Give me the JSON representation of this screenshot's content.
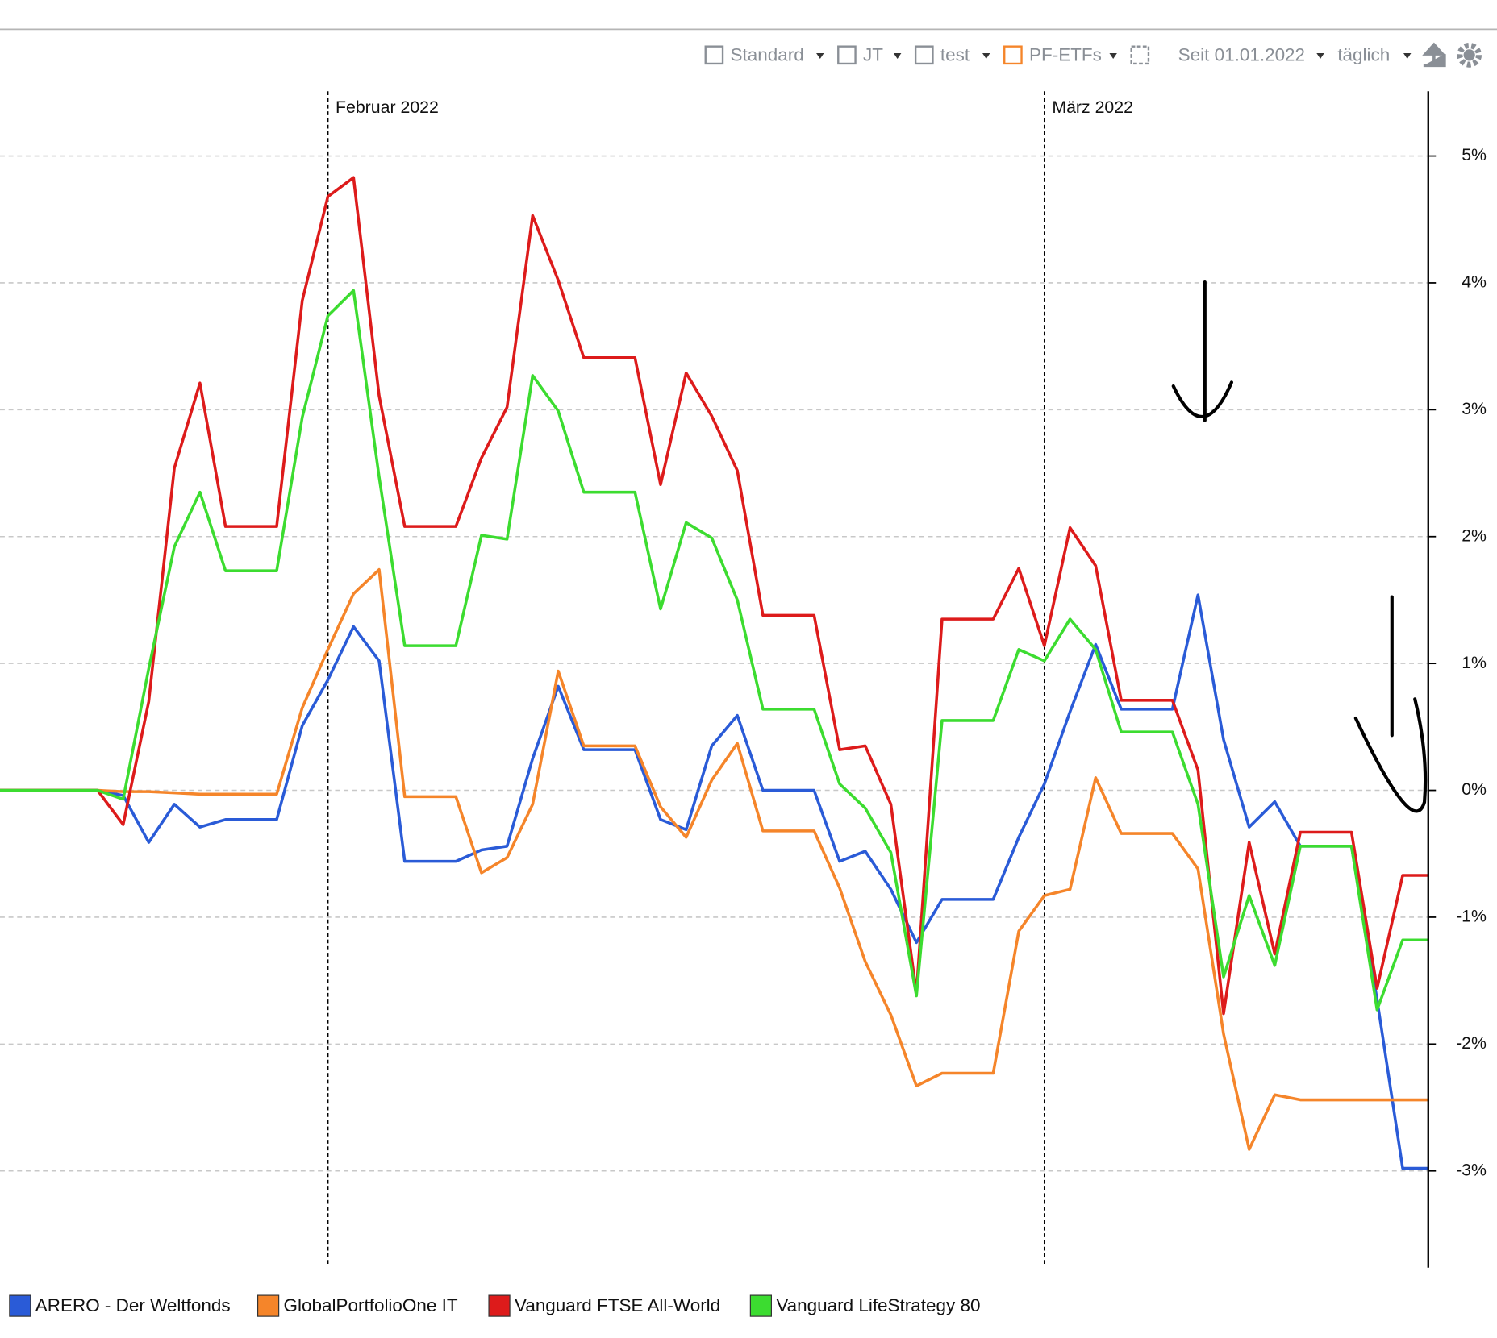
{
  "toolbar": {
    "views": [
      "Standard",
      "JT",
      "test",
      "PF-ETFs"
    ],
    "period": "Seit 01.01.2022",
    "interval": "täglich"
  },
  "chart_data": {
    "type": "line",
    "x": [
      0,
      1,
      2,
      3,
      4,
      5,
      6,
      7,
      8,
      9,
      10,
      11,
      12,
      13,
      14,
      15,
      16,
      17,
      18,
      19,
      20,
      21,
      22,
      23,
      24,
      25,
      26,
      27,
      28,
      29,
      30,
      31,
      32,
      33,
      34,
      35,
      36,
      37,
      38,
      39,
      40,
      41,
      42,
      43,
      44,
      45,
      46,
      47,
      48,
      49,
      50,
      51,
      52,
      53,
      54,
      55,
      56
    ],
    "xlim": [
      0,
      56
    ],
    "xticks": [
      {
        "value": 13,
        "label": "Februar 2022"
      },
      {
        "value": 41,
        "label": "März 2022"
      }
    ],
    "ylim": [
      -3.74,
      5.51
    ],
    "yticks": [
      {
        "value": -3,
        "label": "-3%"
      },
      {
        "value": -2,
        "label": "-2%"
      },
      {
        "value": -1,
        "label": "-1%"
      },
      {
        "value": 0,
        "label": "0%"
      },
      {
        "value": 1,
        "label": "1%"
      },
      {
        "value": 2,
        "label": "2%"
      },
      {
        "value": 3,
        "label": "3%"
      },
      {
        "value": 4,
        "label": "4%"
      },
      {
        "value": 5,
        "label": "5%"
      }
    ],
    "grid": true,
    "series": [
      {
        "name": "ARERO - Der Weltfonds",
        "color": "#2a5bd7",
        "values": [
          0,
          0,
          0,
          0,
          0,
          -0.04,
          -0.41,
          -0.11,
          -0.29,
          -0.23,
          -0.23,
          -0.23,
          0.51,
          0.87,
          1.29,
          1.02,
          -0.56,
          -0.56,
          -0.56,
          -0.47,
          -0.44,
          0.25,
          0.82,
          0.32,
          0.32,
          0.32,
          -0.23,
          -0.31,
          0.35,
          0.59,
          0,
          0,
          0,
          -0.56,
          -0.48,
          -0.78,
          -1.2,
          -0.86,
          -0.86,
          -0.86,
          -0.37,
          0.05,
          0.62,
          1.15,
          0.64,
          0.64,
          0.64,
          1.54,
          0.4,
          -0.29,
          -0.09,
          -0.44,
          -0.44,
          -0.44,
          -1.65,
          -2.98,
          -2.98
        ]
      },
      {
        "name": "GlobalPortfolioOne IT",
        "color": "#f5852a",
        "values": [
          0,
          0,
          0,
          0,
          0,
          -0.01,
          -0.01,
          -0.02,
          -0.03,
          -0.03,
          -0.03,
          -0.03,
          0.65,
          1.11,
          1.55,
          1.74,
          -0.05,
          -0.05,
          -0.05,
          -0.65,
          -0.53,
          -0.11,
          0.94,
          0.35,
          0.35,
          0.35,
          -0.13,
          -0.37,
          0.08,
          0.37,
          -0.32,
          -0.32,
          -0.32,
          -0.77,
          -1.35,
          -1.77,
          -2.33,
          -2.23,
          -2.23,
          -2.23,
          -1.11,
          -0.83,
          -0.78,
          0.1,
          -0.34,
          -0.34,
          -0.34,
          -0.62,
          -1.92,
          -2.83,
          -2.4,
          -2.44,
          -2.44,
          -2.44,
          -2.44,
          -2.44,
          -2.44
        ]
      },
      {
        "name": "Vanguard FTSE All-World",
        "color": "#dd1b1b",
        "values": [
          0,
          0,
          0,
          0,
          0,
          -0.27,
          0.7,
          2.54,
          3.21,
          2.08,
          2.08,
          2.08,
          3.86,
          4.68,
          4.83,
          3.11,
          2.08,
          2.08,
          2.08,
          2.62,
          3.02,
          4.53,
          4.02,
          3.41,
          3.41,
          3.41,
          2.41,
          3.29,
          2.95,
          2.52,
          1.38,
          1.38,
          1.38,
          0.32,
          0.35,
          -0.11,
          -1.6,
          1.35,
          1.35,
          1.35,
          1.75,
          1.14,
          2.07,
          1.77,
          0.71,
          0.71,
          0.71,
          0.16,
          -1.76,
          -0.41,
          -1.29,
          -0.33,
          -0.33,
          -0.33,
          -1.56,
          -0.67,
          -0.67
        ]
      },
      {
        "name": "Vanguard LifeStrategy 80",
        "color": "#3cdc30",
        "values": [
          0,
          0,
          0,
          0,
          0,
          -0.07,
          0.96,
          1.92,
          2.35,
          1.73,
          1.73,
          1.73,
          2.94,
          3.74,
          3.94,
          2.47,
          1.14,
          1.14,
          1.14,
          2.01,
          1.98,
          3.27,
          2.99,
          2.35,
          2.35,
          2.35,
          1.43,
          2.11,
          1.99,
          1.5,
          0.64,
          0.64,
          0.64,
          0.05,
          -0.14,
          -0.49,
          -1.62,
          0.55,
          0.55,
          0.55,
          1.11,
          1.02,
          1.35,
          1.11,
          0.46,
          0.46,
          0.46,
          -0.11,
          -1.47,
          -0.83,
          -1.38,
          -0.44,
          -0.44,
          -0.44,
          -1.73,
          -1.18,
          -1.18
        ]
      }
    ]
  }
}
